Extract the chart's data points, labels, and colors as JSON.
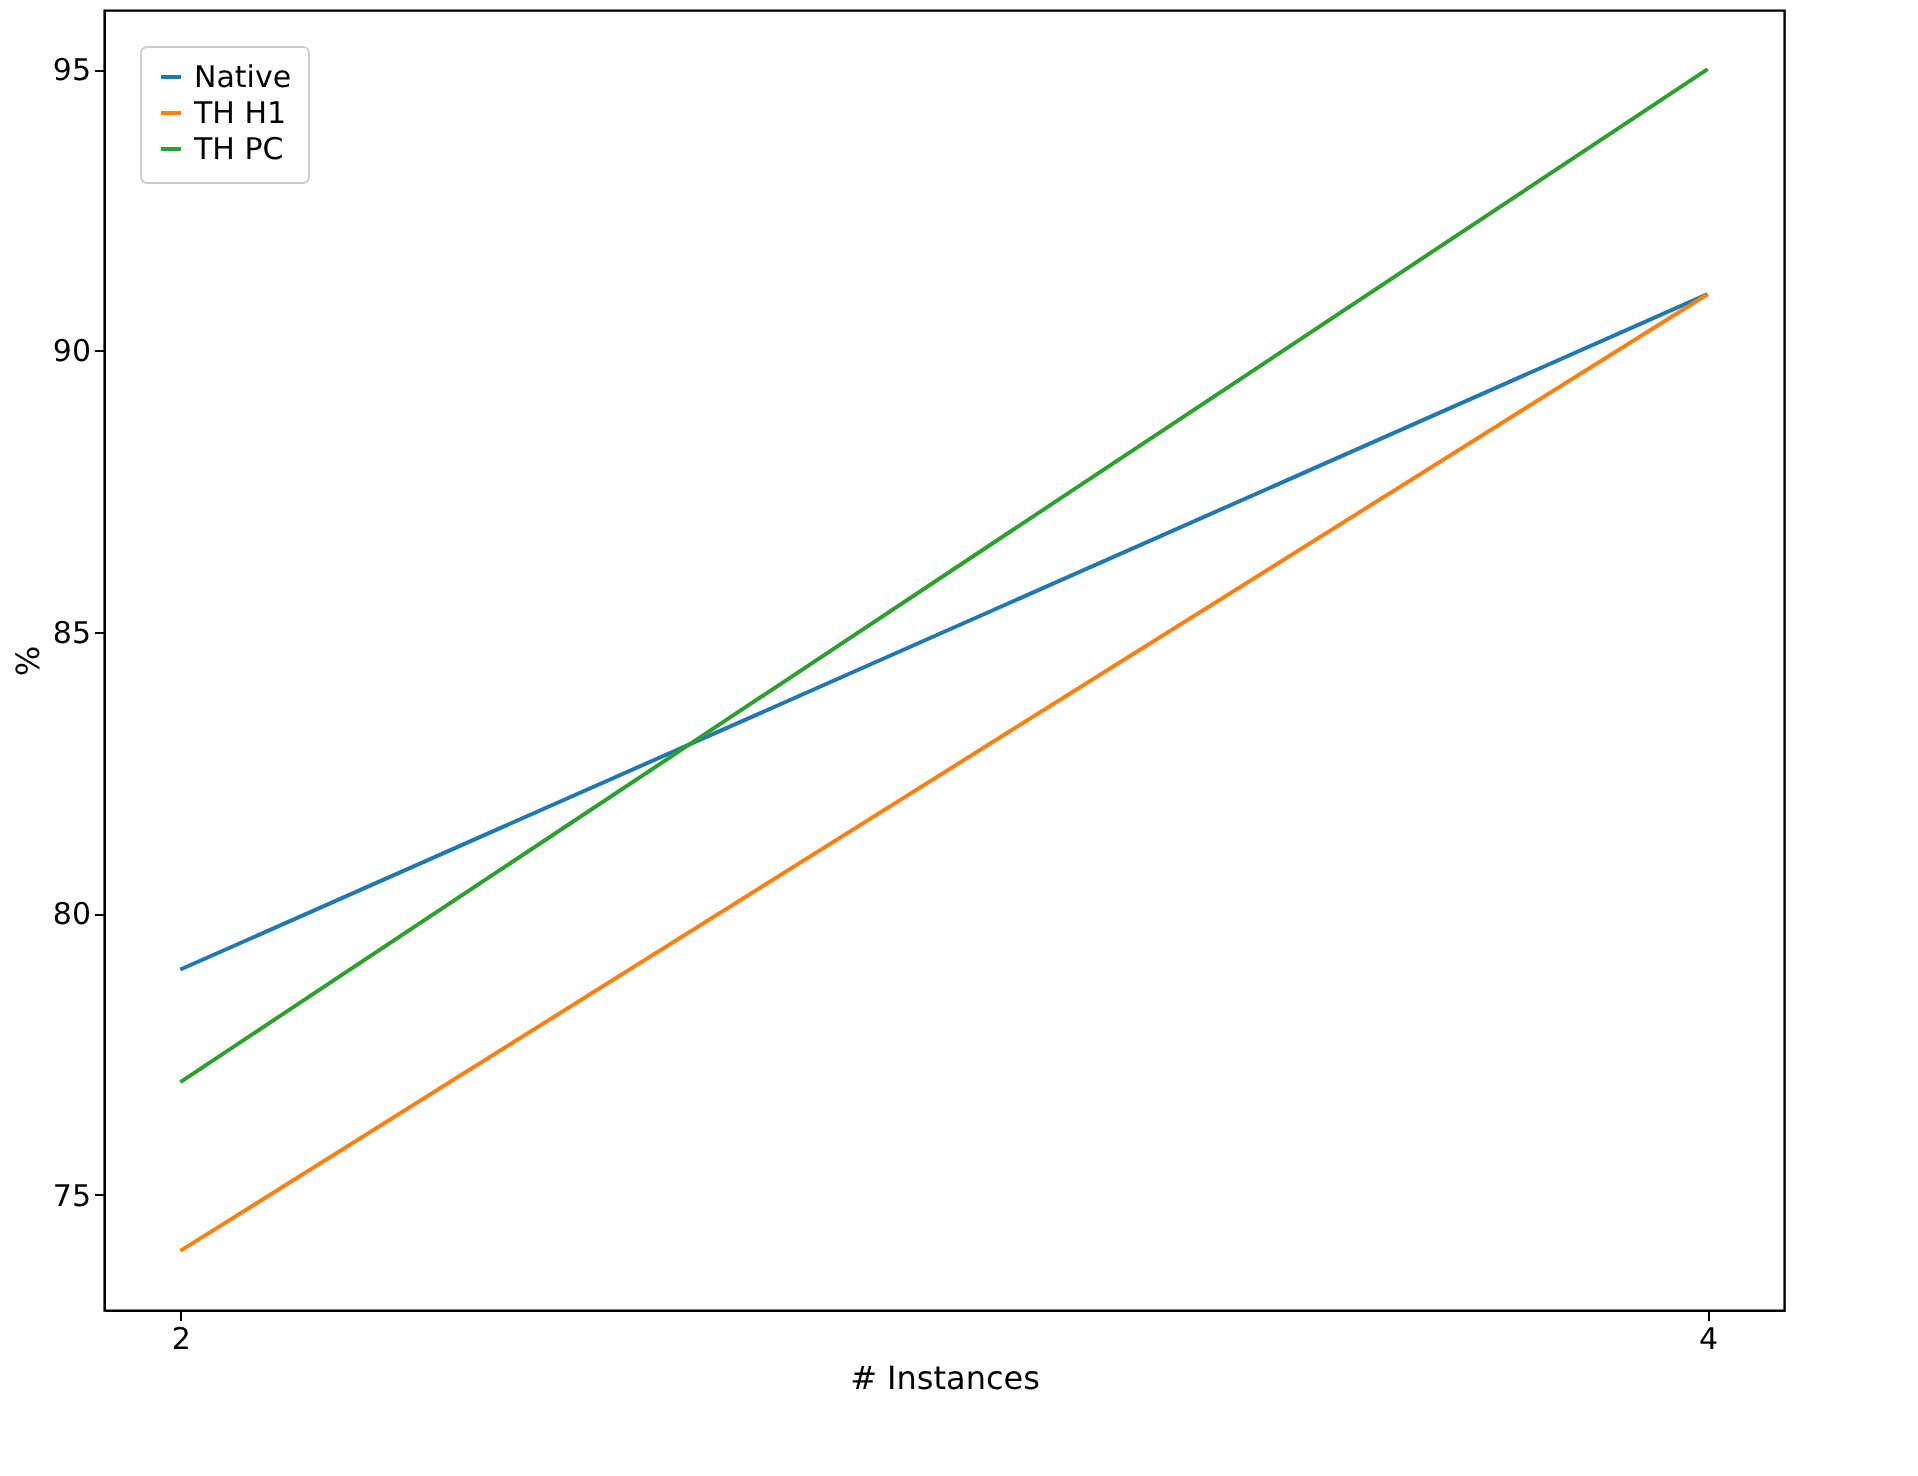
{
  "chart_data": {
    "type": "line",
    "xlabel": "# Instances",
    "ylabel": "%",
    "x": [
      2,
      4
    ],
    "series": [
      {
        "name": "Native",
        "color": "#1f77b4",
        "values": [
          79,
          91
        ]
      },
      {
        "name": "TH H1",
        "color": "#ff7f0e",
        "values": [
          74,
          91
        ]
      },
      {
        "name": "TH PC",
        "color": "#2ca02c",
        "values": [
          77,
          95
        ]
      }
    ],
    "xlim": [
      1.9,
      4.1
    ],
    "ylim": [
      72.95,
      96.05
    ],
    "xticks": [
      2,
      4
    ],
    "yticks": [
      75,
      80,
      85,
      90,
      95
    ],
    "grid": false,
    "legend": "top left",
    "marker": "none",
    "line_style": "solid"
  }
}
